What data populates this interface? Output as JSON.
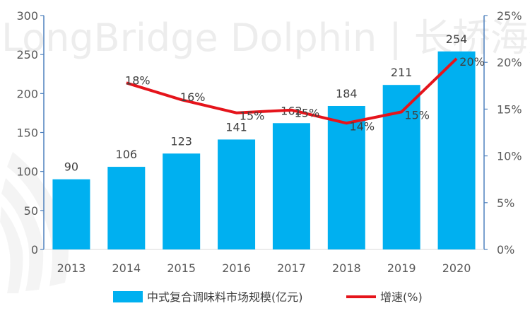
{
  "watermark": {
    "text": "LongBridge Dolphin | 长桥海豚投研"
  },
  "chart_data": {
    "type": "bar",
    "title": "",
    "xlabel": "",
    "ylabel": "",
    "categories": [
      "2013",
      "2014",
      "2015",
      "2016",
      "2017",
      "2018",
      "2019",
      "2020"
    ],
    "ylim": [
      0,
      300
    ],
    "y_ticks": [
      "0",
      "50",
      "100",
      "150",
      "200",
      "250",
      "300"
    ],
    "y2lim": [
      0,
      25
    ],
    "y2_ticks": [
      "0%",
      "5%",
      "10%",
      "15%",
      "20%",
      "25%"
    ],
    "grid": false,
    "legend_position": "bottom",
    "series": [
      {
        "name": "中式复合调味料市场规模(亿元)",
        "type": "bar",
        "axis": "left",
        "color": "#00B0F0",
        "values": [
          90,
          106,
          123,
          141,
          162,
          184,
          211,
          254
        ],
        "labels": [
          "90",
          "106",
          "123",
          "141",
          "162",
          "184",
          "211",
          "254"
        ]
      },
      {
        "name": "增速(%)",
        "type": "line",
        "axis": "right",
        "color": "#E5141B",
        "values": [
          null,
          17.8,
          16.0,
          14.6,
          14.9,
          13.5,
          14.7,
          20.4
        ],
        "labels": [
          "",
          "18%",
          "16%",
          "15%",
          "15%",
          "14%",
          "15%",
          "20%"
        ]
      }
    ]
  }
}
